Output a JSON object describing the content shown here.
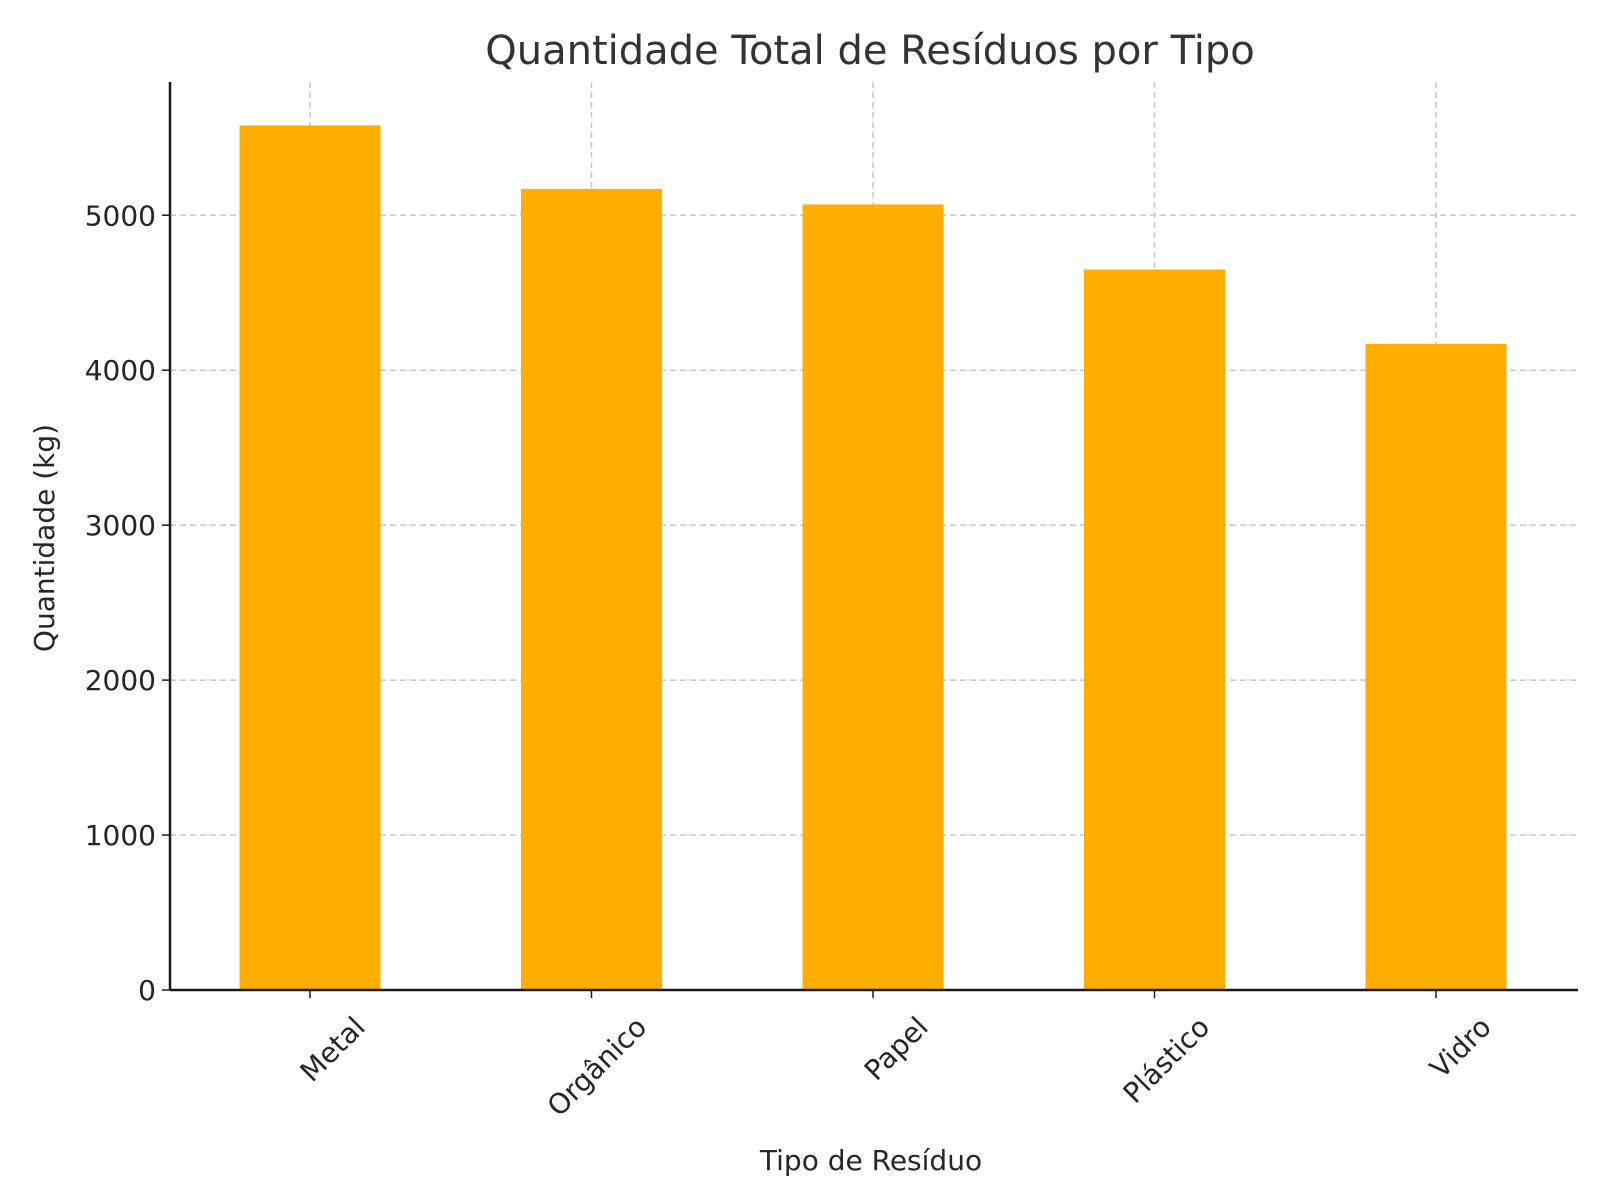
{
  "chart_data": {
    "type": "bar",
    "title": "Quantidade Total de Resíduos por Tipo",
    "xlabel": "Tipo de Resíduo",
    "ylabel": "Quantidade (kg)",
    "categories": [
      "Metal",
      "Orgânico",
      "Papel",
      "Plástico",
      "Vidro"
    ],
    "values": [
      5580,
      5170,
      5070,
      4650,
      4170
    ],
    "ylim": [
      0,
      5860
    ],
    "yticks": [
      0,
      1000,
      2000,
      3000,
      4000,
      5000
    ],
    "grid": true,
    "bar_color": "#FFAE00",
    "legend": null
  }
}
